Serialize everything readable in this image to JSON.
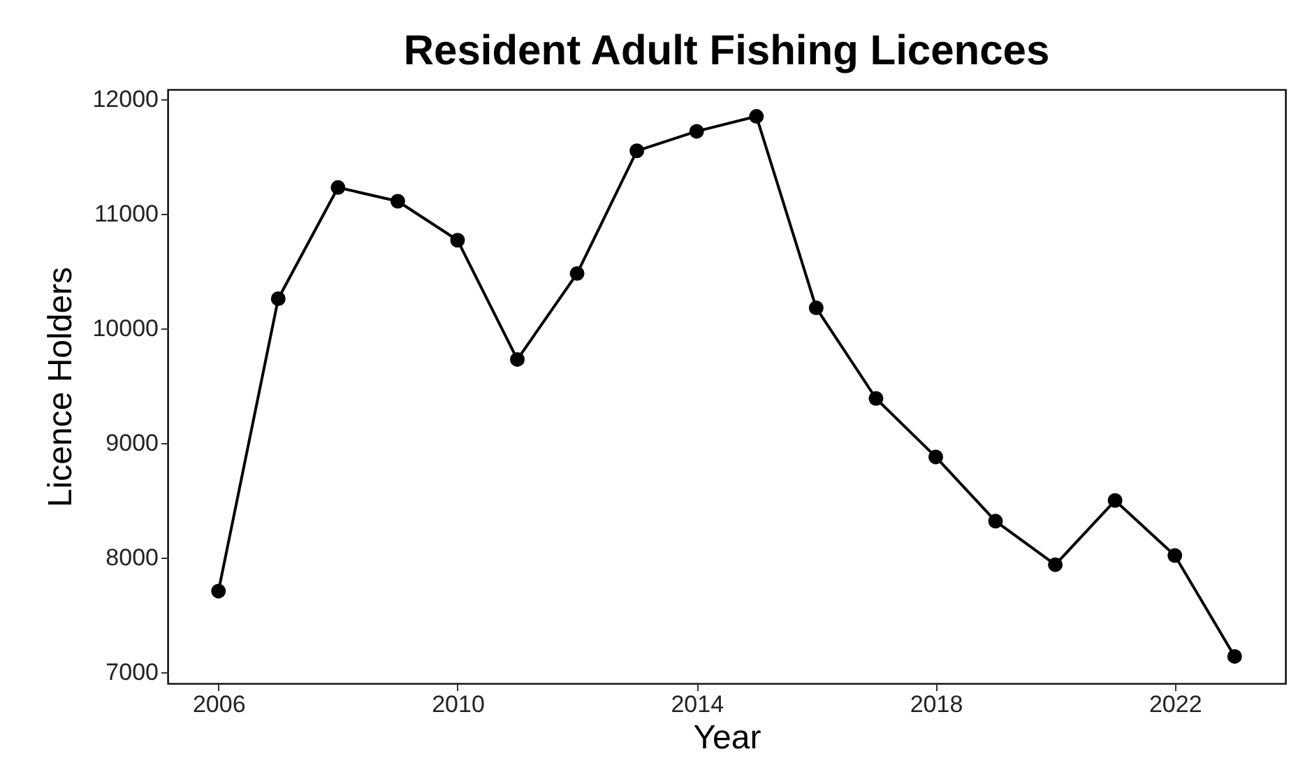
{
  "chart_data": {
    "type": "line",
    "title": "Resident Adult Fishing Licences",
    "xlabel": "Year",
    "ylabel": "Licence Holders",
    "x": [
      2006,
      2007,
      2008,
      2009,
      2010,
      2011,
      2012,
      2013,
      2014,
      2015,
      2016,
      2017,
      2018,
      2019,
      2020,
      2021,
      2022,
      2023
    ],
    "series": [
      {
        "color": "#000000",
        "values": [
          7710,
          10260,
          11230,
          11110,
          10770,
          9730,
          10480,
          11550,
          11720,
          11850,
          10180,
          9390,
          8880,
          8320,
          7940,
          8500,
          8020,
          7140
        ]
      }
    ],
    "xlim": [
      2005.15,
      2023.85
    ],
    "xticks": [
      2006,
      2010,
      2014,
      2018,
      2022
    ],
    "ylim": [
      6905,
      12085
    ],
    "yticks": [
      7000,
      8000,
      9000,
      10000,
      11000,
      12000
    ],
    "grid": false,
    "marker": "circle",
    "line_style": "solid",
    "legend": false
  }
}
